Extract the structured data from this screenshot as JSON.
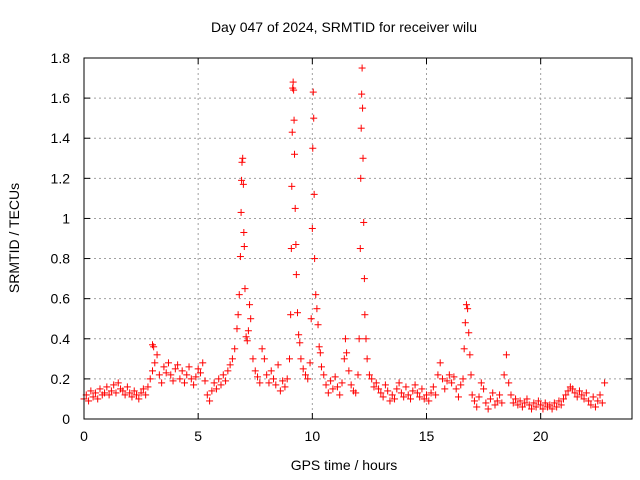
{
  "chart_data": {
    "type": "scatter",
    "title": "Day 047 of 2024, SRMTID for receiver wilu",
    "xlabel": "GPS time / hours",
    "ylabel": "SRMTID / TECUs",
    "xlim": [
      0,
      24
    ],
    "ylim": [
      0,
      1.8
    ],
    "x_ticks": [
      0,
      5,
      10,
      15,
      20
    ],
    "x_tick_labels": [
      "0",
      "5",
      "10",
      "15",
      "20"
    ],
    "y_ticks": [
      0,
      0.2,
      0.4,
      0.6,
      0.8,
      1,
      1.2,
      1.4,
      1.6,
      1.8
    ],
    "y_tick_labels": [
      "0",
      "0.2",
      "0.4",
      "0.6",
      "0.8",
      "1",
      "1.2",
      "1.4",
      "1.6",
      "1.8"
    ],
    "grid": true,
    "marker": "+",
    "color": "#ff0000",
    "series": [
      {
        "name": "SRMTID",
        "points": [
          [
            0.0,
            0.1
          ],
          [
            0.1,
            0.12
          ],
          [
            0.2,
            0.09
          ],
          [
            0.3,
            0.14
          ],
          [
            0.4,
            0.11
          ],
          [
            0.5,
            0.13
          ],
          [
            0.6,
            0.1
          ],
          [
            0.7,
            0.15
          ],
          [
            0.8,
            0.12
          ],
          [
            0.9,
            0.13
          ],
          [
            1.0,
            0.16
          ],
          [
            1.1,
            0.12
          ],
          [
            1.2,
            0.14
          ],
          [
            1.3,
            0.17
          ],
          [
            1.4,
            0.13
          ],
          [
            1.5,
            0.18
          ],
          [
            1.6,
            0.15
          ],
          [
            1.7,
            0.14
          ],
          [
            1.8,
            0.12
          ],
          [
            1.9,
            0.16
          ],
          [
            2.0,
            0.13
          ],
          [
            2.1,
            0.11
          ],
          [
            2.2,
            0.14
          ],
          [
            2.3,
            0.12
          ],
          [
            2.4,
            0.1
          ],
          [
            2.5,
            0.13
          ],
          [
            2.6,
            0.15
          ],
          [
            2.7,
            0.12
          ],
          [
            2.8,
            0.16
          ],
          [
            2.9,
            0.2
          ],
          [
            3.0,
            0.24
          ],
          [
            3.0,
            0.37
          ],
          [
            3.05,
            0.36
          ],
          [
            3.1,
            0.28
          ],
          [
            3.2,
            0.32
          ],
          [
            3.3,
            0.22
          ],
          [
            3.4,
            0.18
          ],
          [
            3.5,
            0.26
          ],
          [
            3.6,
            0.23
          ],
          [
            3.7,
            0.28
          ],
          [
            3.8,
            0.22
          ],
          [
            3.9,
            0.19
          ],
          [
            4.0,
            0.25
          ],
          [
            4.1,
            0.27
          ],
          [
            4.2,
            0.2
          ],
          [
            4.3,
            0.24
          ],
          [
            4.4,
            0.18
          ],
          [
            4.5,
            0.22
          ],
          [
            4.6,
            0.26
          ],
          [
            4.7,
            0.2
          ],
          [
            4.8,
            0.17
          ],
          [
            4.9,
            0.21
          ],
          [
            5.0,
            0.25
          ],
          [
            5.1,
            0.23
          ],
          [
            5.2,
            0.28
          ],
          [
            5.3,
            0.19
          ],
          [
            5.4,
            0.12
          ],
          [
            5.5,
            0.09
          ],
          [
            5.6,
            0.14
          ],
          [
            5.7,
            0.18
          ],
          [
            5.8,
            0.15
          ],
          [
            5.9,
            0.2
          ],
          [
            6.0,
            0.17
          ],
          [
            6.1,
            0.22
          ],
          [
            6.2,
            0.19
          ],
          [
            6.3,
            0.24
          ],
          [
            6.4,
            0.27
          ],
          [
            6.5,
            0.3
          ],
          [
            6.6,
            0.35
          ],
          [
            6.7,
            0.45
          ],
          [
            6.75,
            0.52
          ],
          [
            6.8,
            0.62
          ],
          [
            6.85,
            0.81
          ],
          [
            6.88,
            1.03
          ],
          [
            6.9,
            1.19
          ],
          [
            6.92,
            1.28
          ],
          [
            6.95,
            1.3
          ],
          [
            6.98,
            1.17
          ],
          [
            7.0,
            0.93
          ],
          [
            7.02,
            0.86
          ],
          [
            7.05,
            0.65
          ],
          [
            7.1,
            0.41
          ],
          [
            7.15,
            0.39
          ],
          [
            7.2,
            0.44
          ],
          [
            7.25,
            0.57
          ],
          [
            7.3,
            0.5
          ],
          [
            7.4,
            0.3
          ],
          [
            7.5,
            0.24
          ],
          [
            7.6,
            0.21
          ],
          [
            7.7,
            0.18
          ],
          [
            7.8,
            0.35
          ],
          [
            7.9,
            0.3
          ],
          [
            8.0,
            0.22
          ],
          [
            8.1,
            0.18
          ],
          [
            8.2,
            0.24
          ],
          [
            8.3,
            0.2
          ],
          [
            8.4,
            0.17
          ],
          [
            8.5,
            0.27
          ],
          [
            8.6,
            0.14
          ],
          [
            8.7,
            0.19
          ],
          [
            8.8,
            0.16
          ],
          [
            8.9,
            0.2
          ],
          [
            9.0,
            0.3
          ],
          [
            9.05,
            0.52
          ],
          [
            9.08,
            0.85
          ],
          [
            9.1,
            1.16
          ],
          [
            9.12,
            1.43
          ],
          [
            9.14,
            1.65
          ],
          [
            9.16,
            1.68
          ],
          [
            9.18,
            1.64
          ],
          [
            9.2,
            1.49
          ],
          [
            9.22,
            1.32
          ],
          [
            9.25,
            1.05
          ],
          [
            9.28,
            0.87
          ],
          [
            9.3,
            0.72
          ],
          [
            9.35,
            0.53
          ],
          [
            9.4,
            0.42
          ],
          [
            9.45,
            0.38
          ],
          [
            9.5,
            0.3
          ],
          [
            9.6,
            0.25
          ],
          [
            9.7,
            0.22
          ],
          [
            9.8,
            0.2
          ],
          [
            9.9,
            0.28
          ],
          [
            9.95,
            0.5
          ],
          [
            10.0,
            0.95
          ],
          [
            10.02,
            1.35
          ],
          [
            10.04,
            1.63
          ],
          [
            10.06,
            1.5
          ],
          [
            10.08,
            1.12
          ],
          [
            10.1,
            0.8
          ],
          [
            10.15,
            0.62
          ],
          [
            10.2,
            0.55
          ],
          [
            10.25,
            0.47
          ],
          [
            10.3,
            0.36
          ],
          [
            10.35,
            0.33
          ],
          [
            10.4,
            0.26
          ],
          [
            10.5,
            0.22
          ],
          [
            10.6,
            0.17
          ],
          [
            10.7,
            0.13
          ],
          [
            10.8,
            0.19
          ],
          [
            10.9,
            0.15
          ],
          [
            11.0,
            0.21
          ],
          [
            11.1,
            0.16
          ],
          [
            11.2,
            0.12
          ],
          [
            11.3,
            0.18
          ],
          [
            11.4,
            0.3
          ],
          [
            11.45,
            0.4
          ],
          [
            11.5,
            0.33
          ],
          [
            11.6,
            0.24
          ],
          [
            11.7,
            0.17
          ],
          [
            11.8,
            0.14
          ],
          [
            11.9,
            0.13
          ],
          [
            12.0,
            0.22
          ],
          [
            12.05,
            0.4
          ],
          [
            12.1,
            0.85
          ],
          [
            12.12,
            1.2
          ],
          [
            12.14,
            1.45
          ],
          [
            12.16,
            1.62
          ],
          [
            12.18,
            1.75
          ],
          [
            12.2,
            1.55
          ],
          [
            12.22,
            1.3
          ],
          [
            12.25,
            0.98
          ],
          [
            12.28,
            0.7
          ],
          [
            12.3,
            0.52
          ],
          [
            12.35,
            0.4
          ],
          [
            12.4,
            0.3
          ],
          [
            12.5,
            0.22
          ],
          [
            12.6,
            0.2
          ],
          [
            12.7,
            0.16
          ],
          [
            12.8,
            0.18
          ],
          [
            12.9,
            0.15
          ],
          [
            13.0,
            0.13
          ],
          [
            13.1,
            0.11
          ],
          [
            13.2,
            0.17
          ],
          [
            13.3,
            0.14
          ],
          [
            13.4,
            0.09
          ],
          [
            13.5,
            0.12
          ],
          [
            13.6,
            0.1
          ],
          [
            13.7,
            0.15
          ],
          [
            13.8,
            0.18
          ],
          [
            13.9,
            0.13
          ],
          [
            14.0,
            0.11
          ],
          [
            14.1,
            0.16
          ],
          [
            14.2,
            0.12
          ],
          [
            14.3,
            0.1
          ],
          [
            14.4,
            0.14
          ],
          [
            14.5,
            0.17
          ],
          [
            14.6,
            0.13
          ],
          [
            14.7,
            0.11
          ],
          [
            14.8,
            0.15
          ],
          [
            14.9,
            0.1
          ],
          [
            15.0,
            0.12
          ],
          [
            15.1,
            0.09
          ],
          [
            15.2,
            0.13
          ],
          [
            15.3,
            0.16
          ],
          [
            15.4,
            0.12
          ],
          [
            15.5,
            0.22
          ],
          [
            15.6,
            0.28
          ],
          [
            15.7,
            0.2
          ],
          [
            15.8,
            0.15
          ],
          [
            15.9,
            0.19
          ],
          [
            16.0,
            0.22
          ],
          [
            16.1,
            0.18
          ],
          [
            16.2,
            0.21
          ],
          [
            16.3,
            0.15
          ],
          [
            16.4,
            0.11
          ],
          [
            16.5,
            0.17
          ],
          [
            16.6,
            0.2
          ],
          [
            16.65,
            0.35
          ],
          [
            16.7,
            0.48
          ],
          [
            16.75,
            0.57
          ],
          [
            16.8,
            0.55
          ],
          [
            16.85,
            0.43
          ],
          [
            16.9,
            0.32
          ],
          [
            16.95,
            0.22
          ],
          [
            17.0,
            0.12
          ],
          [
            17.1,
            0.09
          ],
          [
            17.2,
            0.06
          ],
          [
            17.3,
            0.11
          ],
          [
            17.4,
            0.18
          ],
          [
            17.5,
            0.15
          ],
          [
            17.6,
            0.08
          ],
          [
            17.7,
            0.05
          ],
          [
            17.8,
            0.1
          ],
          [
            17.9,
            0.13
          ],
          [
            18.0,
            0.07
          ],
          [
            18.1,
            0.09
          ],
          [
            18.2,
            0.12
          ],
          [
            18.3,
            0.08
          ],
          [
            18.4,
            0.22
          ],
          [
            18.5,
            0.32
          ],
          [
            18.6,
            0.18
          ],
          [
            18.7,
            0.12
          ],
          [
            18.8,
            0.08
          ],
          [
            18.9,
            0.1
          ],
          [
            19.0,
            0.07
          ],
          [
            19.1,
            0.09
          ],
          [
            19.2,
            0.06
          ],
          [
            19.3,
            0.08
          ],
          [
            19.4,
            0.1
          ],
          [
            19.5,
            0.07
          ],
          [
            19.6,
            0.05
          ],
          [
            19.7,
            0.08
          ],
          [
            19.8,
            0.06
          ],
          [
            19.9,
            0.09
          ],
          [
            20.0,
            0.07
          ],
          [
            20.1,
            0.05
          ],
          [
            20.2,
            0.08
          ],
          [
            20.3,
            0.06
          ],
          [
            20.4,
            0.07
          ],
          [
            20.5,
            0.05
          ],
          [
            20.6,
            0.08
          ],
          [
            20.7,
            0.06
          ],
          [
            20.8,
            0.09
          ],
          [
            20.9,
            0.07
          ],
          [
            21.0,
            0.1
          ],
          [
            21.1,
            0.12
          ],
          [
            21.2,
            0.14
          ],
          [
            21.3,
            0.16
          ],
          [
            21.4,
            0.15
          ],
          [
            21.5,
            0.13
          ],
          [
            21.6,
            0.11
          ],
          [
            21.7,
            0.14
          ],
          [
            21.8,
            0.12
          ],
          [
            21.9,
            0.1
          ],
          [
            22.0,
            0.13
          ],
          [
            22.1,
            0.09
          ],
          [
            22.2,
            0.07
          ],
          [
            22.3,
            0.11
          ],
          [
            22.4,
            0.06
          ],
          [
            22.5,
            0.09
          ],
          [
            22.6,
            0.12
          ],
          [
            22.7,
            0.08
          ],
          [
            22.8,
            0.18
          ]
        ]
      }
    ]
  }
}
